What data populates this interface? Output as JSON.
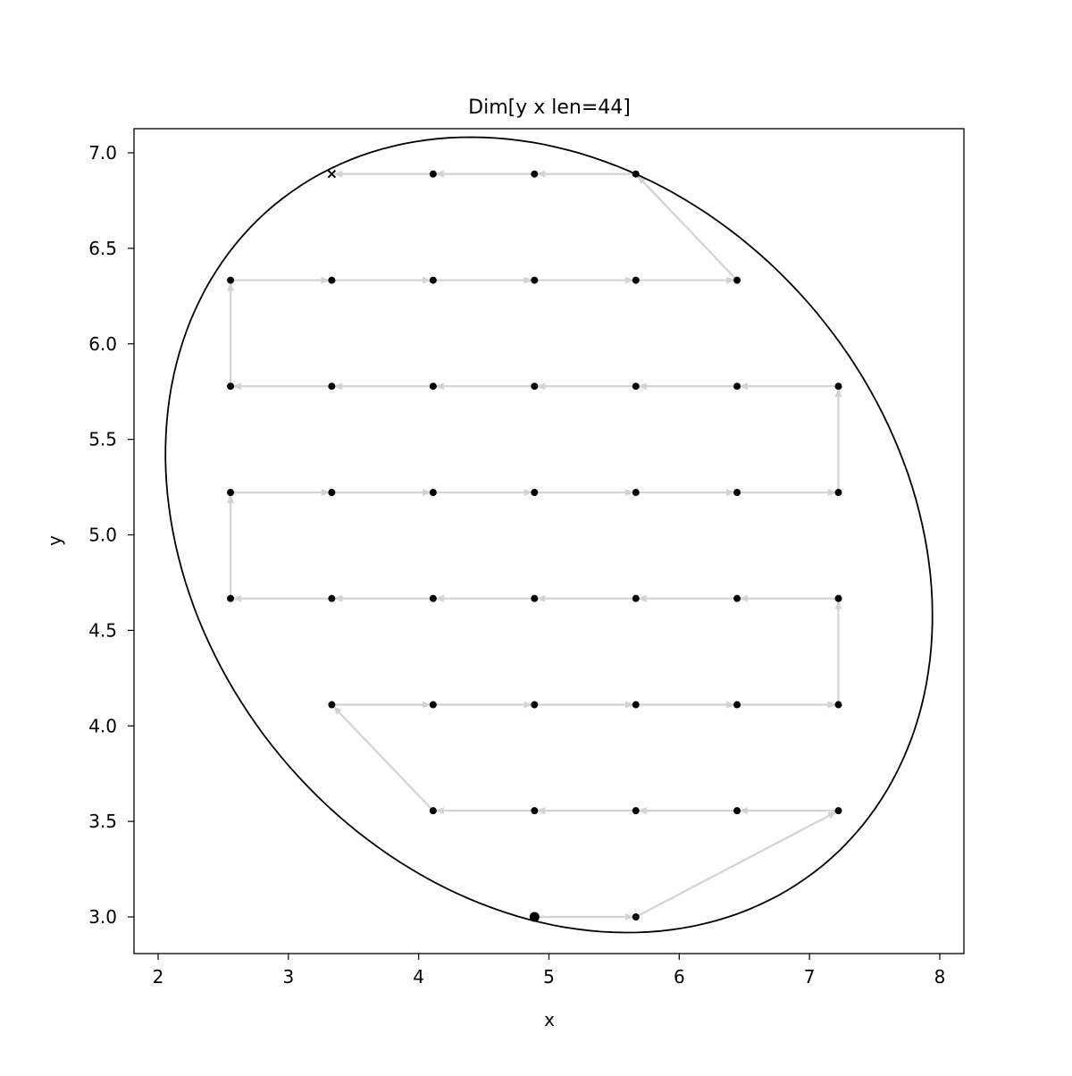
{
  "chart_data": {
    "type": "scatter",
    "title": "Dim[y x len=44]",
    "xlabel": "x",
    "ylabel": "y",
    "xlim": [
      1.82,
      8.18
    ],
    "ylim": [
      2.8,
      7.12
    ],
    "xticks": [
      "2",
      "3",
      "4",
      "5",
      "6",
      "7",
      "8"
    ],
    "yticks": [
      "3.0",
      "3.5",
      "4.0",
      "4.5",
      "5.0",
      "5.5",
      "6.0",
      "6.5",
      "7.0"
    ],
    "grid": false,
    "point_color": "#000000",
    "arrow_color": "#d3d3d3",
    "path": [
      [
        4.889,
        3.0
      ],
      [
        5.667,
        3.0
      ],
      [
        7.222,
        3.556
      ],
      [
        6.444,
        3.556
      ],
      [
        5.667,
        3.556
      ],
      [
        4.889,
        3.556
      ],
      [
        4.111,
        3.556
      ],
      [
        3.333,
        4.111
      ],
      [
        4.111,
        4.111
      ],
      [
        4.889,
        4.111
      ],
      [
        5.667,
        4.111
      ],
      [
        6.444,
        4.111
      ],
      [
        7.222,
        4.111
      ],
      [
        7.222,
        4.667
      ],
      [
        6.444,
        4.667
      ],
      [
        5.667,
        4.667
      ],
      [
        4.889,
        4.667
      ],
      [
        4.111,
        4.667
      ],
      [
        3.333,
        4.667
      ],
      [
        2.556,
        4.667
      ],
      [
        2.556,
        5.222
      ],
      [
        3.333,
        5.222
      ],
      [
        4.111,
        5.222
      ],
      [
        4.889,
        5.222
      ],
      [
        5.667,
        5.222
      ],
      [
        6.444,
        5.222
      ],
      [
        7.222,
        5.222
      ],
      [
        7.222,
        5.778
      ],
      [
        6.444,
        5.778
      ],
      [
        5.667,
        5.778
      ],
      [
        4.889,
        5.778
      ],
      [
        4.111,
        5.778
      ],
      [
        3.333,
        5.778
      ],
      [
        2.556,
        5.778
      ],
      [
        2.556,
        6.333
      ],
      [
        3.333,
        6.333
      ],
      [
        4.111,
        6.333
      ],
      [
        4.889,
        6.333
      ],
      [
        5.667,
        6.333
      ],
      [
        6.444,
        6.333
      ],
      [
        5.667,
        6.889
      ],
      [
        4.889,
        6.889
      ],
      [
        4.111,
        6.889
      ],
      [
        3.333,
        6.889
      ]
    ],
    "start_marker": "large-dot",
    "end_marker": "x",
    "ellipse": {
      "center": [
        5.0,
        5.0
      ],
      "semi_major": 3.0,
      "semi_minor": 2.0,
      "angle_deg": -15
    }
  }
}
